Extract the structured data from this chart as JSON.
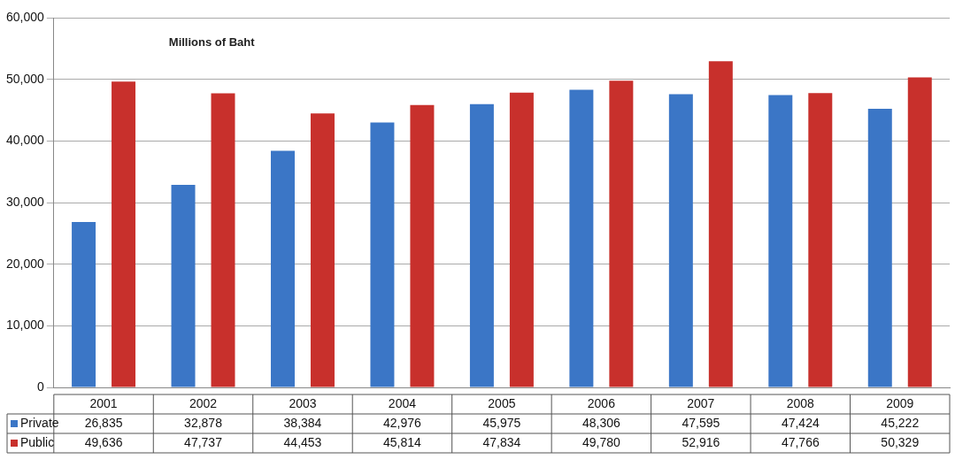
{
  "chart_data": {
    "type": "bar",
    "title": "Millions of Baht",
    "categories": [
      "2001",
      "2002",
      "2003",
      "2004",
      "2005",
      "2006",
      "2007",
      "2008",
      "2009"
    ],
    "series": [
      {
        "name": "Private",
        "color": "#3b76c6",
        "values": [
          26835,
          32878,
          38384,
          42976,
          45975,
          48306,
          47595,
          47424,
          45222
        ],
        "value_labels": [
          "26,835",
          "32,878",
          "38,384",
          "42,976",
          "45,975",
          "48,306",
          "47,595",
          "47,424",
          "45,222"
        ]
      },
      {
        "name": "Public",
        "color": "#c8302c",
        "values": [
          49636,
          47737,
          44453,
          45814,
          47834,
          49780,
          52916,
          47766,
          50329
        ],
        "value_labels": [
          "49,636",
          "47,737",
          "44,453",
          "45,814",
          "47,834",
          "49,780",
          "52,916",
          "47,766",
          "50,329"
        ]
      }
    ],
    "ylim": [
      0,
      60000
    ],
    "yticks": [
      0,
      {
        "value": 10000,
        "label": "10,000"
      },
      {
        "value": 20000,
        "label": "20,000"
      },
      {
        "value": 30000,
        "label": "30,000"
      },
      {
        "value": 40000,
        "label": "40,000"
      },
      {
        "value": 50000,
        "label": "50,000"
      },
      {
        "value": 60000,
        "label": "60,000"
      }
    ],
    "grid": "y",
    "legend": "bottom left"
  }
}
